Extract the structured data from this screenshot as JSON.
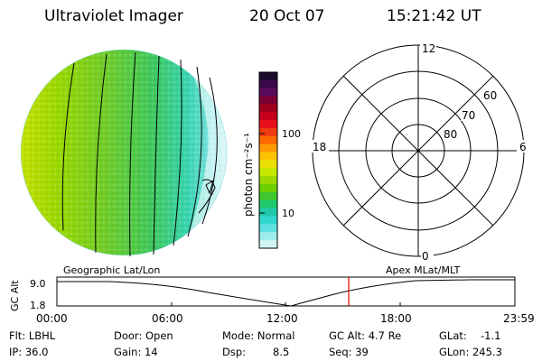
{
  "header": {
    "instrument": "Ultraviolet Imager",
    "date": "20 Oct 07",
    "time": "15:21:42 UT"
  },
  "colorbar": {
    "unit_label": "photon cm⁻²s⁻¹",
    "ticks": [
      "100",
      "10"
    ],
    "colors": [
      "#1a0a2a",
      "#3a0a4a",
      "#5a0a5a",
      "#7a0030",
      "#a0001a",
      "#c8001c",
      "#e8101a",
      "#f03a10",
      "#ff6a00",
      "#ff9a00",
      "#ffc400",
      "#e8e000",
      "#c4e800",
      "#9ad800",
      "#6ad000",
      "#40c830",
      "#20c870",
      "#20c8a8",
      "#30d8d0",
      "#60e0e0",
      "#a0ecec",
      "#d0f4f4"
    ]
  },
  "polar_plot": {
    "mlt_labels": {
      "top": "12",
      "left": "18",
      "right": "6",
      "bottom": "0"
    },
    "lat_labels": [
      "60",
      "70",
      "80"
    ]
  },
  "timeline": {
    "left_label": "Geographic Lat/Lon",
    "right_label": "Apex MLat/MLT",
    "axis_title": "GC Alt",
    "y_ticks": [
      "9.0",
      "1.8"
    ],
    "x_ticks": [
      "00:00",
      "06:00",
      "12:00",
      "18:00",
      "23:59"
    ],
    "marker_color": "#e00000"
  },
  "status": {
    "flt": "Flt: LBHL",
    "ip": "IP: 36.0",
    "door": "Door: Open",
    "gain": "Gain: 14",
    "mode": "Mode: Normal",
    "dsp_label": "Dsp:",
    "dsp_value": "8.5",
    "gc_alt": "GC Alt: 4.7 Re",
    "seq": "Seq: 39",
    "glat_label": "GLat:",
    "glat_value": "-1.1",
    "glon": "GLon: 245.3"
  }
}
